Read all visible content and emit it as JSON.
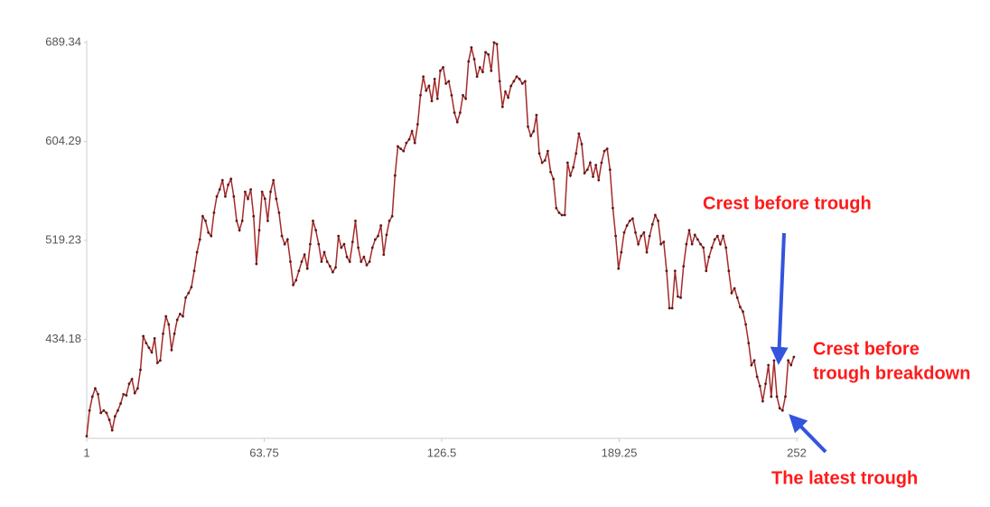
{
  "chart_data": {
    "type": "line",
    "color": "#a52a2a",
    "marker_color": "#5a1a1a",
    "annotation_color": "#ff1a1a",
    "xlim": [
      1,
      252
    ],
    "xticks": [
      1,
      63.75,
      126.5,
      189.25,
      252
    ],
    "ylim": [
      349.13,
      689.34
    ],
    "yticks": [
      434.18,
      519.23,
      604.29,
      689.34
    ],
    "grid": false,
    "values": [
      351,
      373,
      385,
      392,
      387,
      371,
      373,
      371,
      365,
      356,
      368,
      373,
      379,
      387,
      386,
      396,
      400,
      388,
      392,
      408,
      437,
      431,
      427,
      423,
      435,
      414,
      416,
      439,
      454,
      447,
      425,
      439,
      451,
      456,
      454,
      470,
      474,
      479,
      493,
      509,
      520,
      540,
      536,
      526,
      523,
      543,
      557,
      563,
      571,
      557,
      567,
      572,
      557,
      536,
      528,
      536,
      561,
      555,
      563,
      540,
      499,
      528,
      561,
      555,
      536,
      561,
      571,
      555,
      543,
      523,
      516,
      520,
      501,
      481,
      485,
      493,
      501,
      507,
      495,
      516,
      536,
      528,
      516,
      501,
      509,
      501,
      497,
      492,
      496,
      523,
      513,
      516,
      505,
      501,
      518,
      536,
      513,
      501,
      505,
      498,
      501,
      513,
      520,
      523,
      532,
      507,
      524,
      536,
      540,
      575,
      600,
      598,
      596,
      603,
      606,
      613,
      603,
      619,
      644,
      660,
      648,
      652,
      639,
      658,
      641,
      665,
      668,
      654,
      656,
      644,
      629,
      621,
      629,
      644,
      641,
      673,
      685,
      675,
      660,
      668,
      664,
      681,
      679,
      665,
      689.34,
      688,
      656,
      634,
      647,
      642,
      652,
      656,
      660,
      658,
      654,
      656,
      617,
      609,
      613,
      627,
      594,
      586,
      588,
      596,
      578,
      572,
      547,
      543,
      541,
      541,
      586,
      575,
      582,
      594,
      611,
      602,
      577,
      580,
      586,
      574,
      584,
      571,
      586,
      596,
      598,
      580,
      547,
      523,
      495,
      509,
      526,
      532,
      536,
      538,
      526,
      516,
      523,
      526,
      509,
      523,
      533,
      541,
      536,
      516,
      518,
      493,
      461,
      461,
      493,
      471,
      470,
      497,
      516,
      528,
      516,
      524,
      520,
      516,
      513,
      493,
      505,
      513,
      520,
      523,
      516,
      523,
      513,
      493,
      474,
      478,
      470,
      462,
      458,
      447,
      431,
      412,
      416,
      402,
      394,
      381,
      396,
      412,
      385,
      416,
      385,
      375,
      373,
      385,
      416,
      412,
      419
    ],
    "annotations": [
      {
        "text": "Crest before trough"
      },
      {
        "lines": [
          "Crest before",
          "trough breakdown"
        ]
      },
      {
        "text": "The latest trough"
      }
    ]
  }
}
